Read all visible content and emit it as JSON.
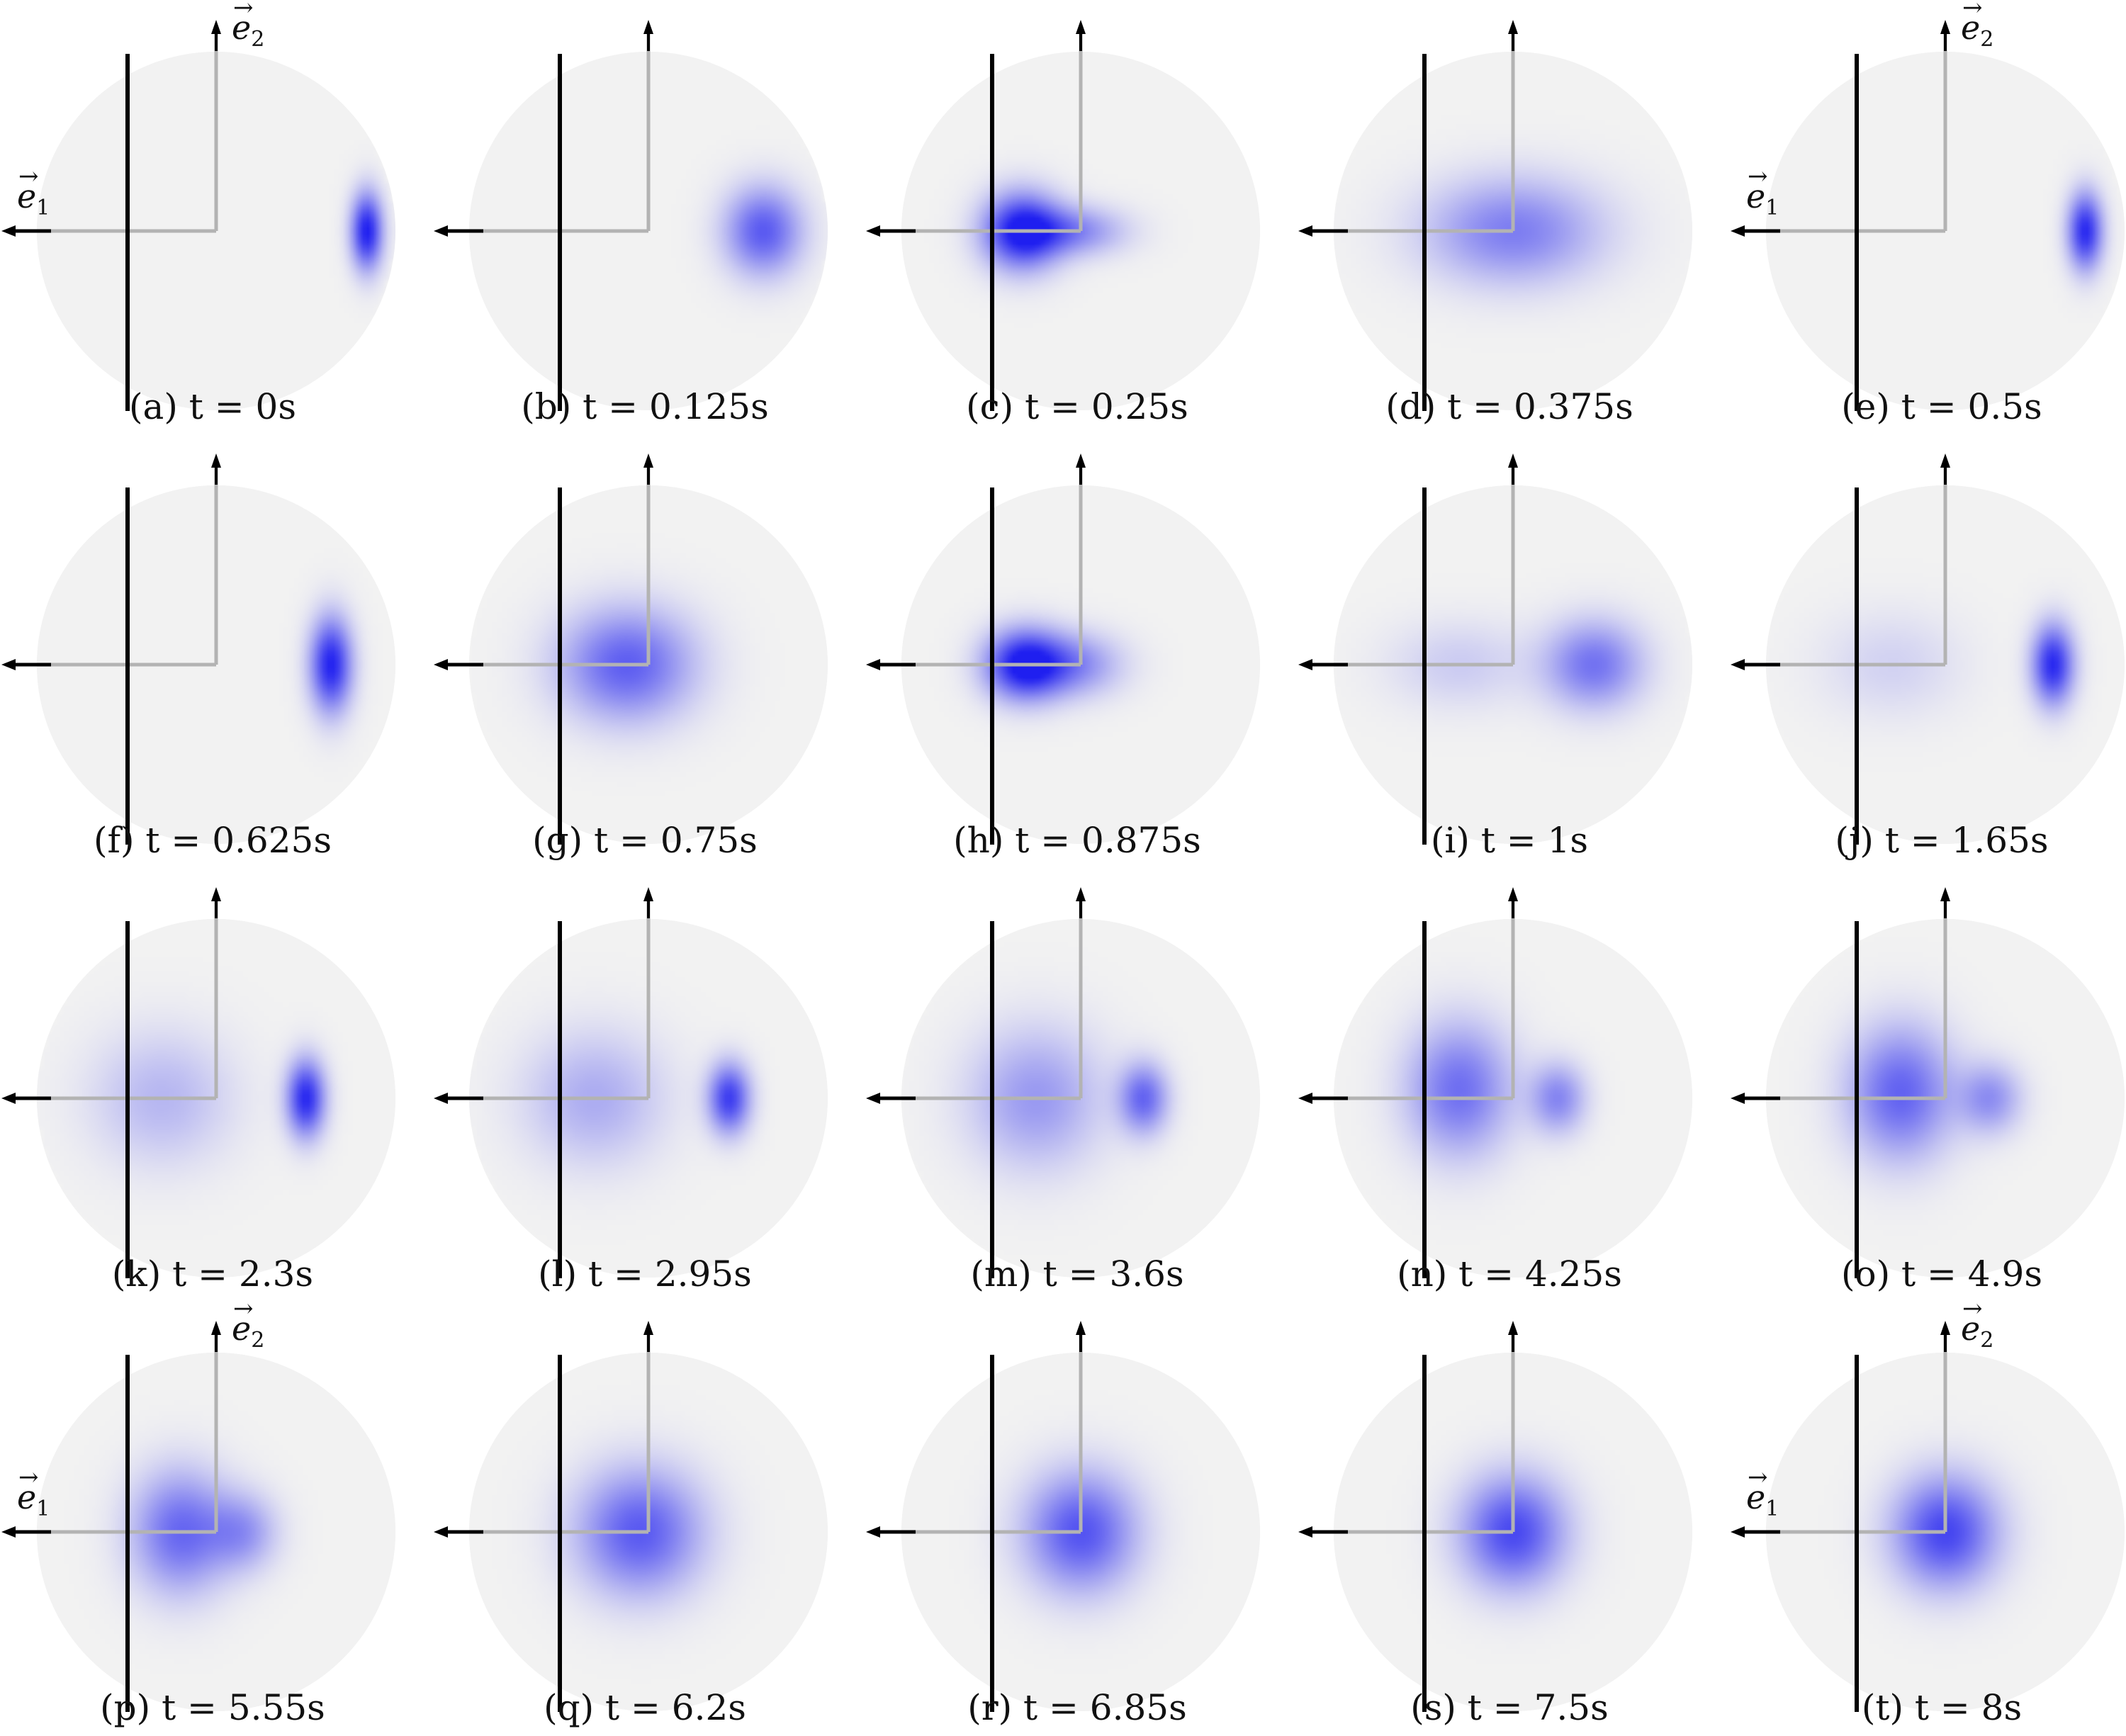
{
  "figure": {
    "axis_labels": {
      "e1": "e",
      "e1_sub": "1",
      "e2": "e",
      "e2_sub": "2"
    },
    "colors": {
      "disk": "#f2f2f2",
      "density": "#1f1ff0",
      "wall": "#000000",
      "axis": "#b3b3b3"
    },
    "panels": [
      {
        "caption": "(a) t = 0s",
        "show_e1": true,
        "show_e2": true,
        "blobs": [
          {
            "x": 0.84,
            "y": 0.0,
            "sx": 0.09,
            "sy": 0.22,
            "a": 1.0
          }
        ]
      },
      {
        "caption": "(b) t = 0.125s",
        "show_e1": false,
        "show_e2": false,
        "blobs": [
          {
            "x": 0.64,
            "y": 0.0,
            "sx": 0.22,
            "sy": 0.25,
            "a": 0.72
          }
        ]
      },
      {
        "caption": "(c) t = 0.25s",
        "show_e1": false,
        "show_e2": false,
        "blobs": [
          {
            "x": -0.33,
            "y": 0.0,
            "sx": 0.22,
            "sy": 0.22,
            "a": 1.0
          },
          {
            "x": -0.05,
            "y": 0.0,
            "sx": 0.3,
            "sy": 0.14,
            "a": 0.5
          }
        ]
      },
      {
        "caption": "(d) t = 0.375s",
        "show_e1": false,
        "show_e2": false,
        "blobs": [
          {
            "x": 0.0,
            "y": 0.0,
            "sx": 0.5,
            "sy": 0.3,
            "a": 0.55
          }
        ]
      },
      {
        "caption": "(e) t = 0.5s",
        "show_e1": true,
        "show_e2": true,
        "blobs": [
          {
            "x": 0.78,
            "y": 0.0,
            "sx": 0.1,
            "sy": 0.22,
            "a": 0.95
          }
        ]
      },
      {
        "caption": "(f) t = 0.625s",
        "show_e1": false,
        "show_e2": false,
        "blobs": [
          {
            "x": 0.64,
            "y": 0.0,
            "sx": 0.12,
            "sy": 0.27,
            "a": 0.98
          }
        ]
      },
      {
        "caption": "(g) t = 0.75s",
        "show_e1": false,
        "show_e2": false,
        "blobs": [
          {
            "x": -0.12,
            "y": 0.0,
            "sx": 0.38,
            "sy": 0.32,
            "a": 0.7
          }
        ]
      },
      {
        "caption": "(h) t = 0.875s",
        "show_e1": false,
        "show_e2": false,
        "blobs": [
          {
            "x": -0.32,
            "y": 0.0,
            "sx": 0.22,
            "sy": 0.2,
            "a": 1.0
          },
          {
            "x": -0.05,
            "y": 0.0,
            "sx": 0.28,
            "sy": 0.18,
            "a": 0.5
          }
        ]
      },
      {
        "caption": "(i) t = 1s",
        "show_e1": false,
        "show_e2": false,
        "blobs": [
          {
            "x": 0.45,
            "y": 0.0,
            "sx": 0.28,
            "sy": 0.25,
            "a": 0.6
          },
          {
            "x": -0.3,
            "y": 0.0,
            "sx": 0.4,
            "sy": 0.25,
            "a": 0.18
          }
        ]
      },
      {
        "caption": "(j) t = 1.65s",
        "show_e1": false,
        "show_e2": false,
        "blobs": [
          {
            "x": 0.6,
            "y": 0.0,
            "sx": 0.12,
            "sy": 0.23,
            "a": 0.95
          },
          {
            "x": -0.3,
            "y": 0.0,
            "sx": 0.4,
            "sy": 0.3,
            "a": 0.15
          }
        ]
      },
      {
        "caption": "(k) t = 2.3s",
        "show_e1": false,
        "show_e2": false,
        "blobs": [
          {
            "x": 0.5,
            "y": 0.0,
            "sx": 0.11,
            "sy": 0.22,
            "a": 0.95
          },
          {
            "x": -0.3,
            "y": 0.0,
            "sx": 0.4,
            "sy": 0.38,
            "a": 0.28
          }
        ]
      },
      {
        "caption": "(l) t = 2.95s",
        "show_e1": false,
        "show_e2": false,
        "blobs": [
          {
            "x": 0.45,
            "y": 0.0,
            "sx": 0.12,
            "sy": 0.2,
            "a": 0.85
          },
          {
            "x": -0.3,
            "y": 0.0,
            "sx": 0.4,
            "sy": 0.38,
            "a": 0.33
          }
        ]
      },
      {
        "caption": "(m) t = 3.6s",
        "show_e1": false,
        "show_e2": false,
        "blobs": [
          {
            "x": 0.35,
            "y": 0.0,
            "sx": 0.14,
            "sy": 0.2,
            "a": 0.65
          },
          {
            "x": -0.25,
            "y": 0.0,
            "sx": 0.38,
            "sy": 0.4,
            "a": 0.42
          }
        ]
      },
      {
        "caption": "(n) t = 4.25s",
        "show_e1": false,
        "show_e2": false,
        "blobs": [
          {
            "x": 0.25,
            "y": 0.0,
            "sx": 0.16,
            "sy": 0.2,
            "a": 0.5
          },
          {
            "x": -0.3,
            "y": 0.05,
            "sx": 0.3,
            "sy": 0.38,
            "a": 0.62
          }
        ]
      },
      {
        "caption": "(o) t = 4.9s",
        "show_e1": false,
        "show_e2": false,
        "blobs": [
          {
            "x": 0.25,
            "y": 0.0,
            "sx": 0.18,
            "sy": 0.2,
            "a": 0.45
          },
          {
            "x": -0.25,
            "y": 0.03,
            "sx": 0.3,
            "sy": 0.38,
            "a": 0.68
          }
        ]
      },
      {
        "caption": "(p) t = 5.55s",
        "show_e1": true,
        "show_e2": true,
        "blobs": [
          {
            "x": 0.15,
            "y": 0.0,
            "sx": 0.2,
            "sy": 0.22,
            "a": 0.4
          },
          {
            "x": -0.2,
            "y": 0.0,
            "sx": 0.28,
            "sy": 0.35,
            "a": 0.65
          }
        ]
      },
      {
        "caption": "(q) t = 6.2s",
        "show_e1": false,
        "show_e2": false,
        "blobs": [
          {
            "x": -0.05,
            "y": 0.0,
            "sx": 0.36,
            "sy": 0.36,
            "a": 0.72
          }
        ]
      },
      {
        "caption": "(r) t = 6.85s",
        "show_e1": false,
        "show_e2": false,
        "blobs": [
          {
            "x": 0.0,
            "y": 0.0,
            "sx": 0.32,
            "sy": 0.34,
            "a": 0.75
          }
        ]
      },
      {
        "caption": "(s) t = 7.5s",
        "show_e1": false,
        "show_e2": false,
        "blobs": [
          {
            "x": 0.0,
            "y": 0.0,
            "sx": 0.3,
            "sy": 0.32,
            "a": 0.8
          }
        ]
      },
      {
        "caption": "(t) t = 8s",
        "show_e1": true,
        "show_e2": true,
        "blobs": [
          {
            "x": 0.0,
            "y": 0.0,
            "sx": 0.3,
            "sy": 0.32,
            "a": 0.82
          }
        ]
      }
    ]
  }
}
